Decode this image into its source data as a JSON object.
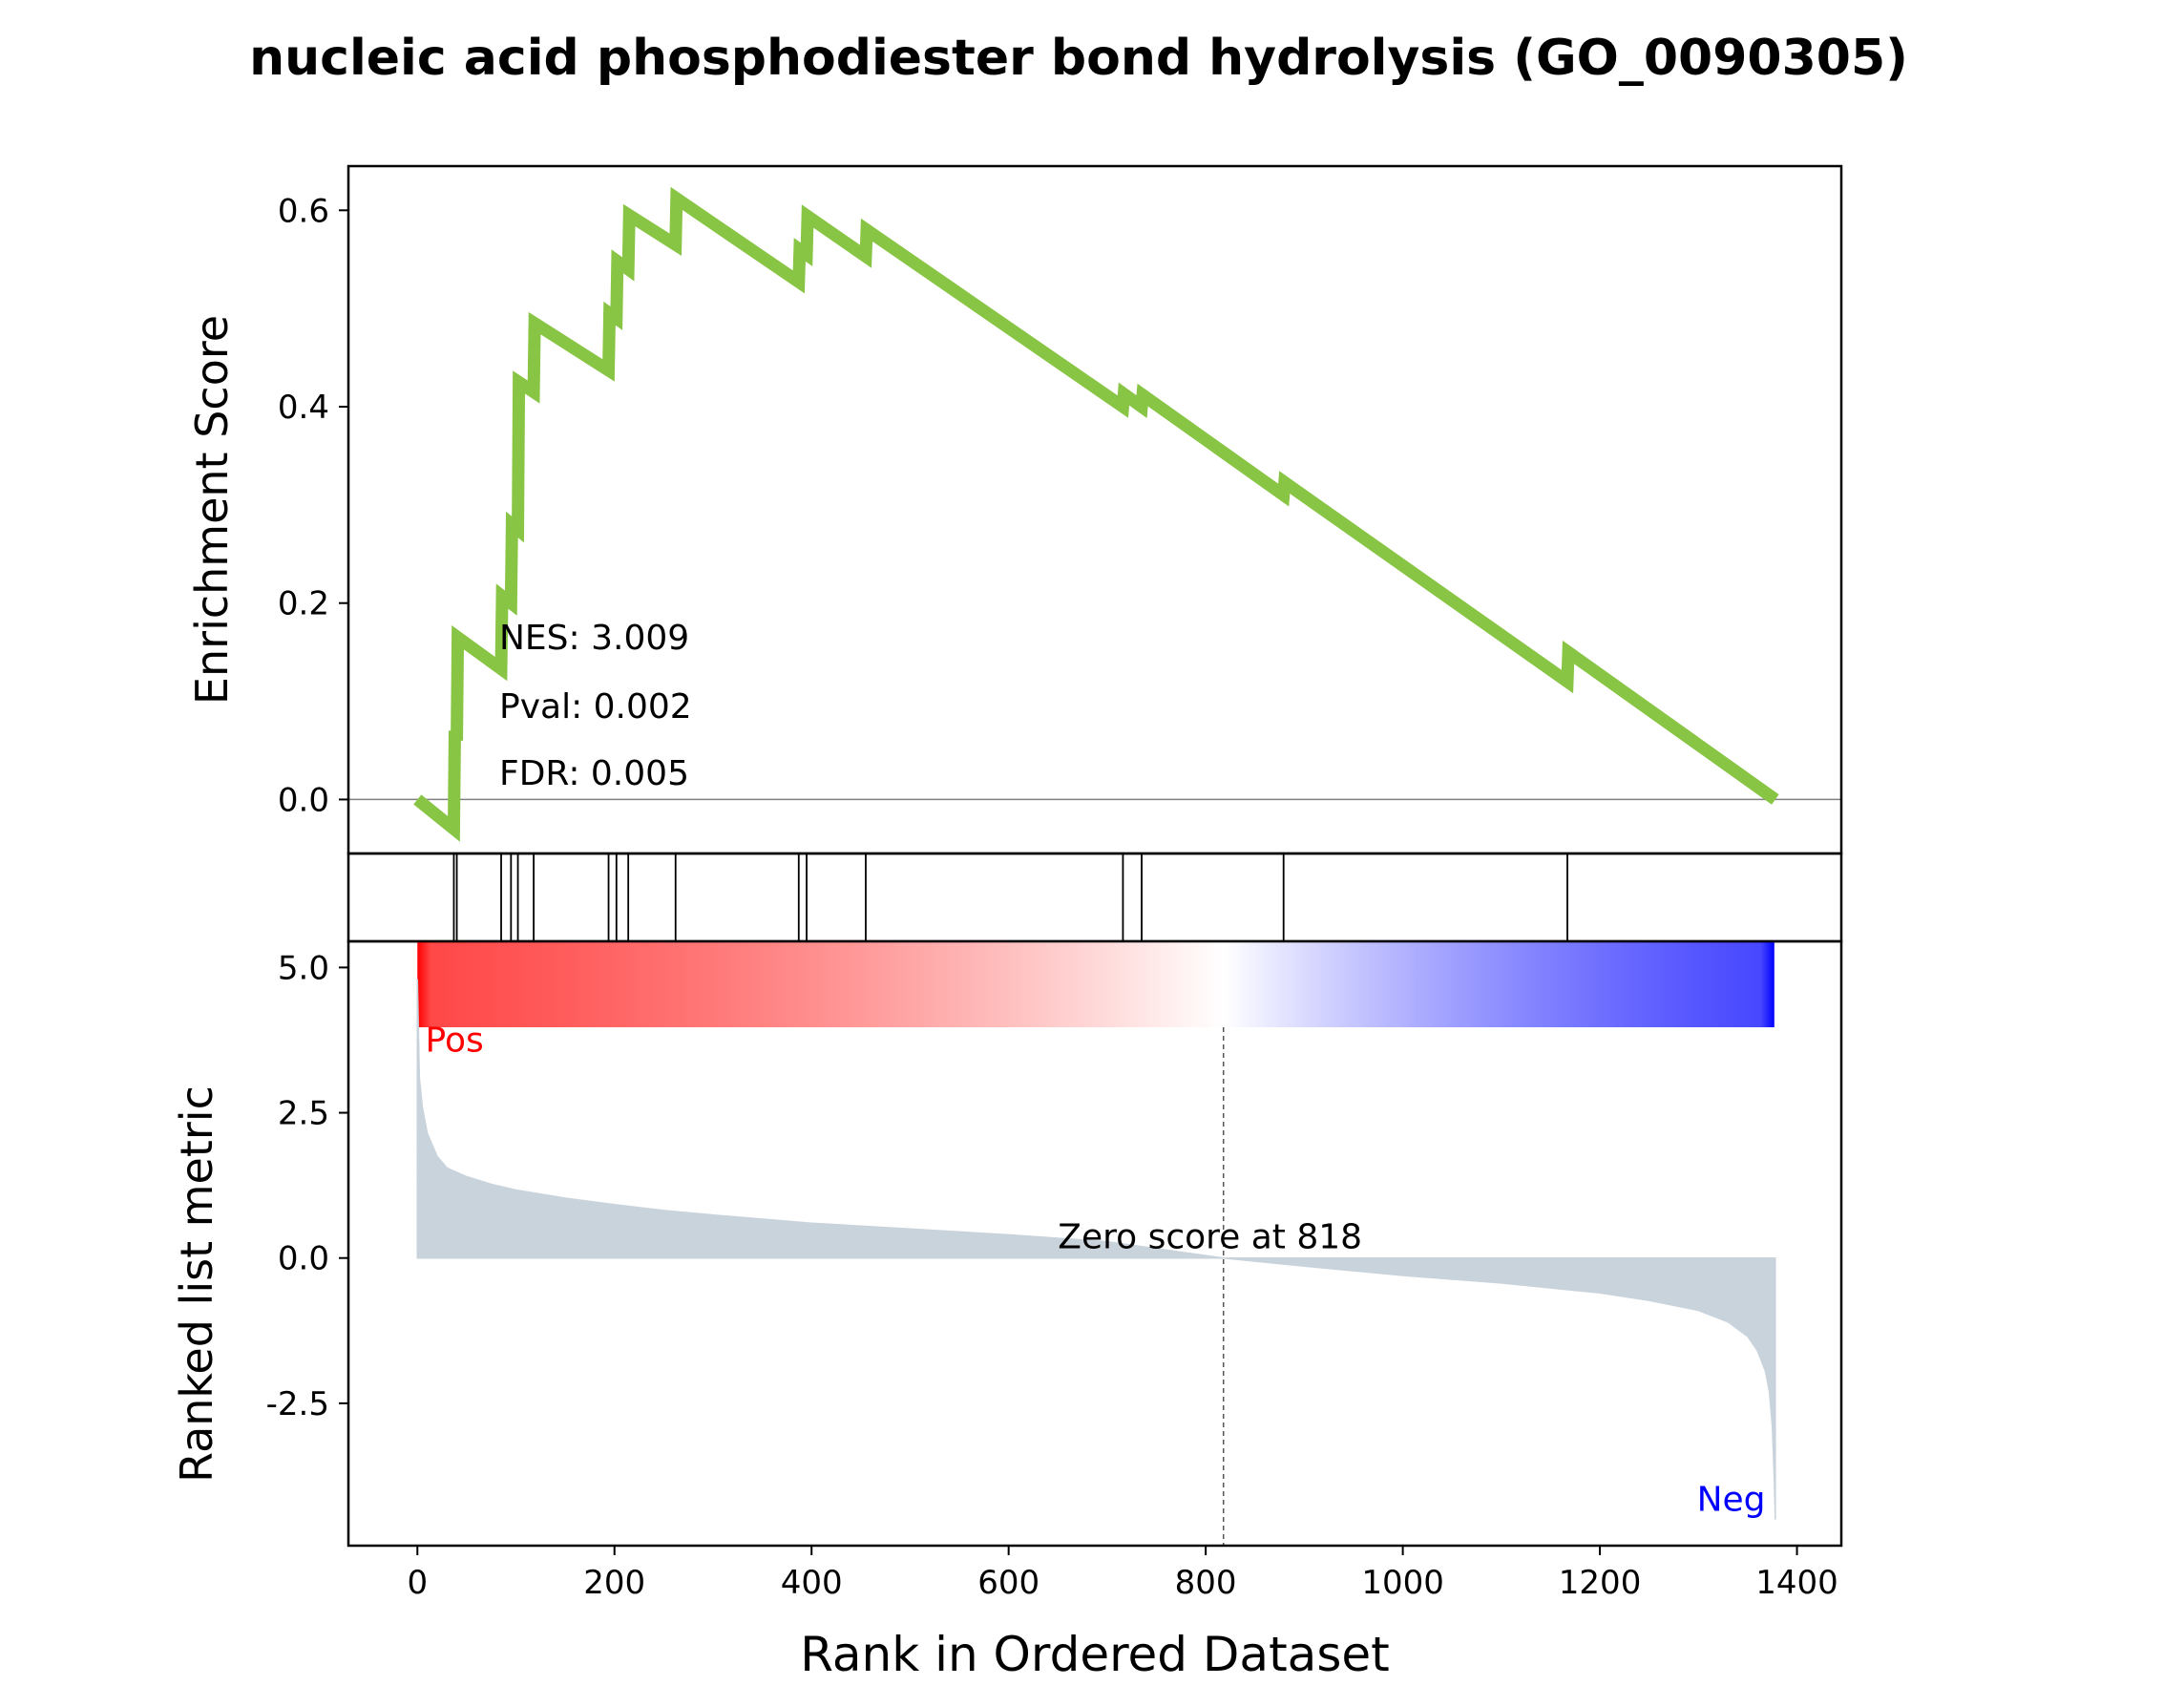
{
  "chart_data": {
    "type": "line",
    "title": "nucleic acid phosphodiester bond hydrolysis (GO_0090305)",
    "colors": {
      "es_line": "#88c544",
      "metric_fill": "#c9d3dc",
      "pos_label": "#ff0000",
      "neg_label": "#0000ff",
      "hit_line": "#000000",
      "zero_line": "#808080",
      "ramp_pos": "#ff0000",
      "ramp_mid": "#ffffff",
      "ramp_neg": "#0000ff"
    },
    "xlabel": "Rank in Ordered Dataset",
    "xlim": [
      -70,
      1445
    ],
    "xticks": [
      0,
      200,
      400,
      600,
      800,
      1000,
      1200,
      1400
    ],
    "xtick_labels": [
      "0",
      "200",
      "400",
      "600",
      "800",
      "1000",
      "1200",
      "1400"
    ],
    "n_genes": 1378,
    "enrichment": {
      "ylabel": "Enrichment Score",
      "ylim": [
        -0.055,
        0.645
      ],
      "yticks": [
        0.0,
        0.2,
        0.4,
        0.6
      ],
      "ytick_labels": [
        "0.0",
        "0.2",
        "0.4",
        "0.6"
      ],
      "x": [
        0,
        37,
        38,
        40,
        41,
        85,
        86,
        95,
        96,
        102,
        103,
        118,
        119,
        194,
        195,
        202,
        203,
        214,
        215,
        262,
        263,
        387,
        388,
        395,
        396,
        455,
        456,
        716,
        717,
        735,
        736,
        879,
        880,
        1167,
        1168,
        1378
      ],
      "y": [
        0.0,
        -0.03,
        0.07,
        0.06,
        0.165,
        0.133,
        0.207,
        0.2,
        0.28,
        0.275,
        0.425,
        0.415,
        0.485,
        0.437,
        0.495,
        0.49,
        0.548,
        0.54,
        0.595,
        0.565,
        0.612,
        0.527,
        0.56,
        0.555,
        0.594,
        0.553,
        0.58,
        0.4,
        0.413,
        0.4,
        0.412,
        0.31,
        0.323,
        0.12,
        0.15,
        0.0
      ],
      "annotations": {
        "nes": "NES: 3.009",
        "pval": "Pval: 0.002",
        "fdr": "FDR: 0.005"
      }
    },
    "hits": [
      37,
      40,
      85,
      95,
      102,
      118,
      194,
      202,
      214,
      262,
      387,
      395,
      455,
      716,
      735,
      879,
      1167
    ],
    "ranked_metric": {
      "ylabel": "Ranked list metric",
      "ylim": [
        -4.95,
        5.45
      ],
      "yticks": [
        5.0,
        2.5,
        0.0,
        -2.5
      ],
      "ytick_labels": [
        "5.0",
        "2.5",
        "0.0",
        "-2.5"
      ],
      "x": [
        0,
        2,
        5,
        10,
        15,
        20,
        30,
        50,
        75,
        100,
        150,
        200,
        250,
        300,
        400,
        500,
        600,
        700,
        818,
        900,
        1000,
        1100,
        1200,
        1250,
        1300,
        1330,
        1350,
        1360,
        1368,
        1372,
        1375,
        1377,
        1378
      ],
      "y": [
        4.8,
        3.1,
        2.6,
        2.15,
        1.95,
        1.75,
        1.55,
        1.4,
        1.27,
        1.17,
        1.03,
        0.92,
        0.82,
        0.74,
        0.6,
        0.5,
        0.4,
        0.28,
        0.0,
        -0.14,
        -0.3,
        -0.43,
        -0.6,
        -0.73,
        -0.9,
        -1.1,
        -1.35,
        -1.6,
        -1.95,
        -2.3,
        -2.9,
        -3.8,
        -4.5
      ],
      "pos_label": "Pos",
      "neg_label": "Neg",
      "zero_score_rank": 818,
      "zero_score_label": "Zero score at 818"
    }
  }
}
